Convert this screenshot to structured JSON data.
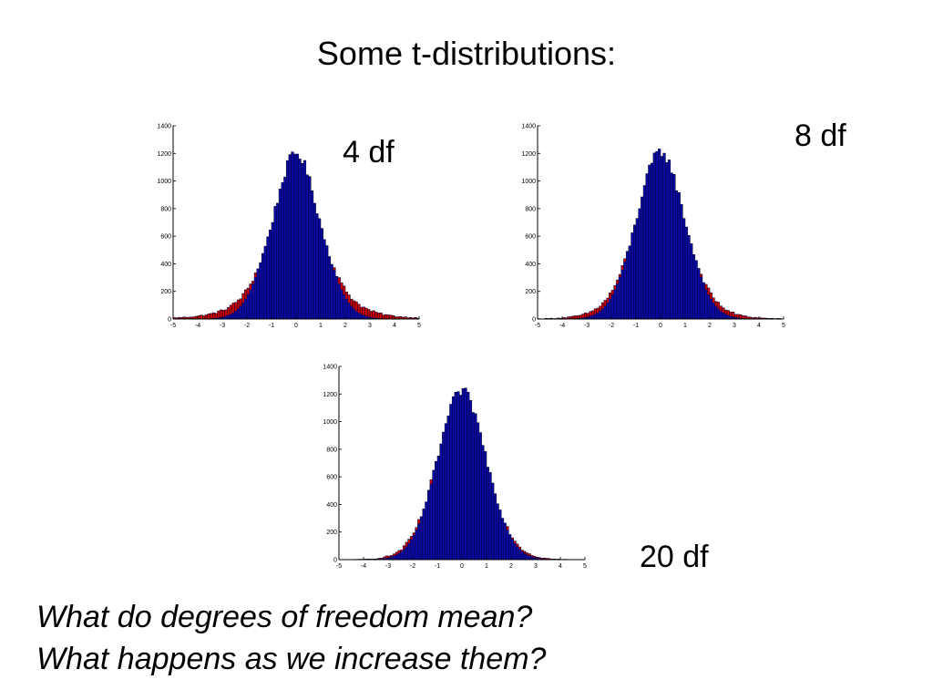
{
  "slide": {
    "title": "Some t-distributions:",
    "questions": [
      "What do degrees of freedom mean?",
      "What happens as we increase them?"
    ]
  },
  "colors": {
    "bar_fill": "#0a0aa0",
    "bar_edge": "#000033",
    "tail_fill": "#cc0000",
    "axis": "#000000"
  },
  "chart_data": [
    {
      "type": "bar",
      "label": "4 df",
      "df": 4,
      "xlim": [
        -5,
        5
      ],
      "ylim": [
        0,
        1400
      ],
      "xticks": [
        -5,
        -4,
        -3,
        -2,
        -1,
        0,
        1,
        2,
        3,
        4,
        5
      ],
      "yticks": [
        0,
        200,
        400,
        600,
        800,
        1000,
        1200,
        1400
      ],
      "bin_width": 0.1,
      "peak": 1200,
      "note": "histogram of simulated t(4) samples, 100 bins from -5 to 5; red overlay marks tail excess over normal"
    },
    {
      "type": "bar",
      "label": "8 df",
      "df": 8,
      "xlim": [
        -5,
        5
      ],
      "ylim": [
        0,
        1400
      ],
      "xticks": [
        -5,
        -4,
        -3,
        -2,
        -1,
        0,
        1,
        2,
        3,
        4,
        5
      ],
      "yticks": [
        0,
        200,
        400,
        600,
        800,
        1000,
        1200,
        1400
      ],
      "bin_width": 0.1,
      "peak": 1210
    },
    {
      "type": "bar",
      "label": "20 df",
      "df": 20,
      "xlim": [
        -5,
        5
      ],
      "ylim": [
        0,
        1400
      ],
      "xticks": [
        -5,
        -4,
        -3,
        -2,
        -1,
        0,
        1,
        2,
        3,
        4,
        5
      ],
      "yticks": [
        0,
        200,
        400,
        600,
        800,
        1000,
        1200,
        1400
      ],
      "bin_width": 0.1,
      "peak": 1220
    }
  ]
}
